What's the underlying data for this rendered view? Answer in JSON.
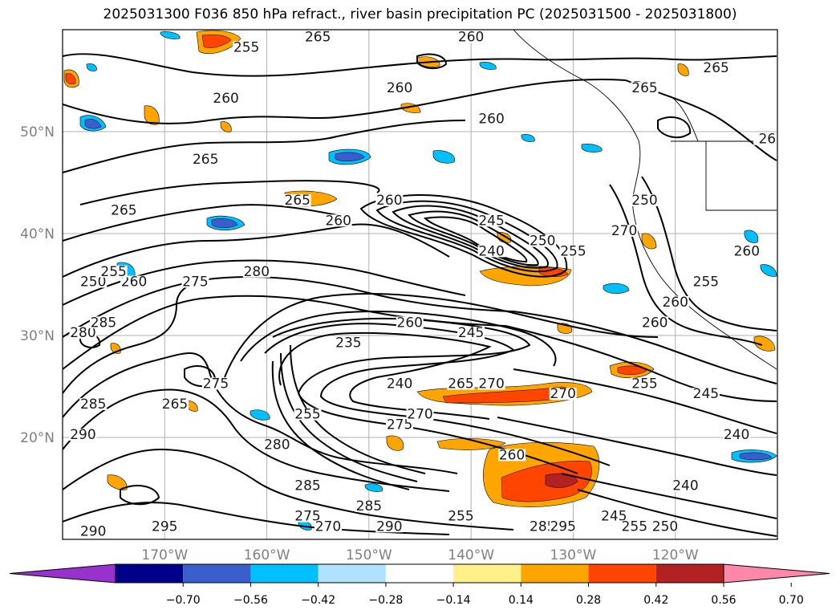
{
  "title": "2025031300 F036 850 hPa refract., river basin precipitation PC (2025031500 - 2025031800)",
  "map": {
    "lon_range": [
      -180,
      -110
    ],
    "lat_range": [
      10,
      60
    ],
    "lat_ticks": [
      {
        "lat": 50,
        "label": "50°N"
      },
      {
        "lat": 40,
        "label": "40°N"
      },
      {
        "lat": 30,
        "label": "30°N"
      },
      {
        "lat": 20,
        "label": "20°N"
      }
    ],
    "lon_ticks": [
      {
        "lon": -170,
        "label": "170°W"
      },
      {
        "lon": -160,
        "label": "160°W"
      },
      {
        "lon": -150,
        "label": "150°W"
      },
      {
        "lon": -140,
        "label": "140°W"
      },
      {
        "lon": -130,
        "label": "130°W"
      },
      {
        "lon": -120,
        "label": "120°W"
      }
    ],
    "grid": true,
    "contour_labels": [
      {
        "text": "265",
        "lon": -174,
        "lat": 42
      },
      {
        "text": "260",
        "lon": -164,
        "lat": 53
      },
      {
        "text": "265",
        "lon": -166,
        "lat": 47
      },
      {
        "text": "255",
        "lon": -162,
        "lat": 58
      },
      {
        "text": "265",
        "lon": -155,
        "lat": 59
      },
      {
        "text": "260",
        "lon": -140,
        "lat": 59
      },
      {
        "text": "260",
        "lon": -147,
        "lat": 54
      },
      {
        "text": "260",
        "lon": -138,
        "lat": 51
      },
      {
        "text": "265",
        "lon": -123,
        "lat": 54
      },
      {
        "text": "265",
        "lon": -116,
        "lat": 56
      },
      {
        "text": "265",
        "lon": -157,
        "lat": 43
      },
      {
        "text": "260",
        "lon": -153,
        "lat": 41
      },
      {
        "text": "260",
        "lon": -148,
        "lat": 43
      },
      {
        "text": "245",
        "lon": -138,
        "lat": 41
      },
      {
        "text": "240",
        "lon": -138,
        "lat": 38
      },
      {
        "text": "250",
        "lon": -133,
        "lat": 39
      },
      {
        "text": "255",
        "lon": -130,
        "lat": 38
      },
      {
        "text": "275",
        "lon": -167,
        "lat": 35
      },
      {
        "text": "280",
        "lon": -161,
        "lat": 36
      },
      {
        "text": "260",
        "lon": -173,
        "lat": 35
      },
      {
        "text": "260",
        "lon": -146,
        "lat": 31
      },
      {
        "text": "235",
        "lon": -152,
        "lat": 29
      },
      {
        "text": "245",
        "lon": -140,
        "lat": 30
      },
      {
        "text": "240",
        "lon": -147,
        "lat": 25
      },
      {
        "text": "265",
        "lon": -141,
        "lat": 25
      },
      {
        "text": "270",
        "lon": -138,
        "lat": 25
      },
      {
        "text": "270",
        "lon": -131,
        "lat": 24
      },
      {
        "text": "255",
        "lon": -156,
        "lat": 22
      },
      {
        "text": "275",
        "lon": -165,
        "lat": 25
      },
      {
        "text": "265",
        "lon": -169,
        "lat": 23
      },
      {
        "text": "285",
        "lon": -177,
        "lat": 23
      },
      {
        "text": "290",
        "lon": -178,
        "lat": 20
      },
      {
        "text": "280",
        "lon": -159,
        "lat": 19
      },
      {
        "text": "285",
        "lon": -156,
        "lat": 15
      },
      {
        "text": "285",
        "lon": -150,
        "lat": 13
      },
      {
        "text": "275",
        "lon": -156,
        "lat": 12
      },
      {
        "text": "270",
        "lon": -154,
        "lat": 11
      },
      {
        "text": "290",
        "lon": -148,
        "lat": 11
      },
      {
        "text": "295",
        "lon": -170,
        "lat": 11
      },
      {
        "text": "290",
        "lon": -177,
        "lat": 10.5
      },
      {
        "text": "275",
        "lon": -147,
        "lat": 21
      },
      {
        "text": "270",
        "lon": -145,
        "lat": 22
      },
      {
        "text": "260",
        "lon": -136,
        "lat": 18
      },
      {
        "text": "255",
        "lon": -141,
        "lat": 12
      },
      {
        "text": "285",
        "lon": -133,
        "lat": 11
      },
      {
        "text": "295",
        "lon": -131,
        "lat": 11
      },
      {
        "text": "245",
        "lon": -126,
        "lat": 12
      },
      {
        "text": "255",
        "lon": -124,
        "lat": 11
      },
      {
        "text": "250",
        "lon": -121,
        "lat": 11
      },
      {
        "text": "240",
        "lon": -119,
        "lat": 15
      },
      {
        "text": "240",
        "lon": -114,
        "lat": 20
      },
      {
        "text": "245",
        "lon": -117,
        "lat": 24
      },
      {
        "text": "255",
        "lon": -123,
        "lat": 25
      },
      {
        "text": "260",
        "lon": -122,
        "lat": 31
      },
      {
        "text": "260",
        "lon": -120,
        "lat": 33
      },
      {
        "text": "270",
        "lon": -125,
        "lat": 40
      },
      {
        "text": "250",
        "lon": -123,
        "lat": 43
      },
      {
        "text": "255",
        "lon": -117,
        "lat": 35
      },
      {
        "text": "260",
        "lon": -113,
        "lat": 38
      },
      {
        "text": "26",
        "lon": -111,
        "lat": 49
      },
      {
        "text": "250",
        "lon": -177,
        "lat": 35
      },
      {
        "text": "255",
        "lon": -175,
        "lat": 36
      },
      {
        "text": "280",
        "lon": -178,
        "lat": 30
      },
      {
        "text": "285",
        "lon": -176,
        "lat": 31
      }
    ]
  },
  "colorbar": {
    "colors": [
      "#9932cc",
      "#00008b",
      "#3a5fcd",
      "#00bfff",
      "#b0e2ff",
      "#ffffff",
      "#fff08a",
      "#ffa500",
      "#ff4500",
      "#b22222",
      "#ff88aa"
    ],
    "ticks": [
      "−0.70",
      "−0.56",
      "−0.42",
      "−0.28",
      "−0.14",
      "0.14",
      "0.28",
      "0.42",
      "0.56",
      "0.70"
    ]
  }
}
